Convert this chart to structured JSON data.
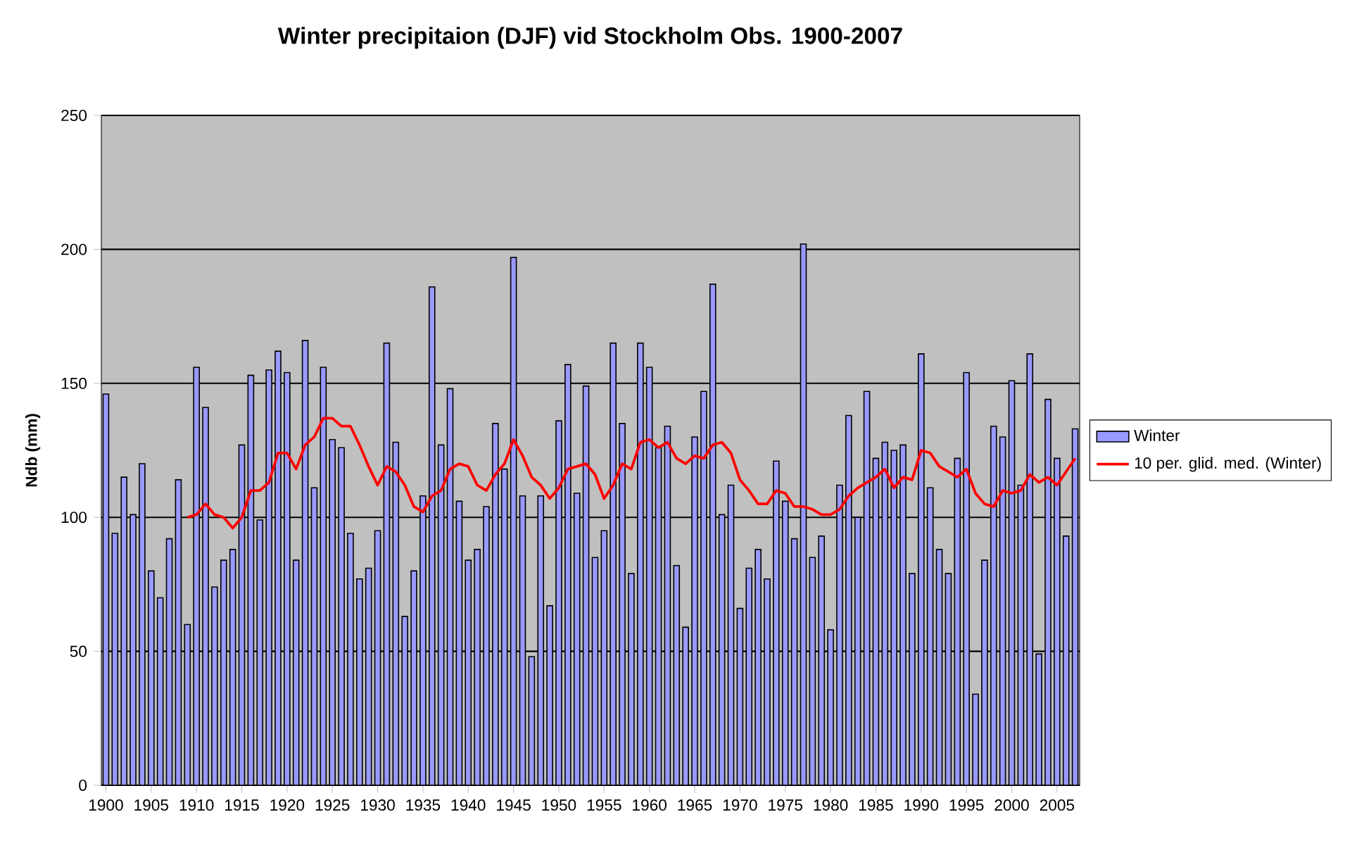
{
  "chart_data": {
    "type": "bar",
    "title": "Winter precipitaion (DJF) vid Stockholm Obs. 1900-2007",
    "ylabel": "Ndb (mm)",
    "x": [
      1900,
      1901,
      1902,
      1903,
      1904,
      1905,
      1906,
      1907,
      1908,
      1909,
      1910,
      1911,
      1912,
      1913,
      1914,
      1915,
      1916,
      1917,
      1918,
      1919,
      1920,
      1921,
      1922,
      1923,
      1924,
      1925,
      1926,
      1927,
      1928,
      1929,
      1930,
      1931,
      1932,
      1933,
      1934,
      1935,
      1936,
      1937,
      1938,
      1939,
      1940,
      1941,
      1942,
      1943,
      1944,
      1945,
      1946,
      1947,
      1948,
      1949,
      1950,
      1951,
      1952,
      1953,
      1954,
      1955,
      1956,
      1957,
      1958,
      1959,
      1960,
      1961,
      1962,
      1963,
      1964,
      1965,
      1966,
      1967,
      1968,
      1969,
      1970,
      1971,
      1972,
      1973,
      1974,
      1975,
      1976,
      1977,
      1978,
      1979,
      1980,
      1981,
      1982,
      1983,
      1984,
      1985,
      1986,
      1987,
      1988,
      1989,
      1990,
      1991,
      1992,
      1993,
      1994,
      1995,
      1996,
      1997,
      1998,
      1999,
      2000,
      2001,
      2002,
      2003,
      2004,
      2005,
      2006,
      2007
    ],
    "xlim": [
      1899.5,
      2007.5
    ],
    "xticks": [
      1900,
      1905,
      1910,
      1915,
      1920,
      1925,
      1930,
      1935,
      1940,
      1945,
      1950,
      1955,
      1960,
      1965,
      1970,
      1975,
      1980,
      1985,
      1990,
      1995,
      2000,
      2005
    ],
    "ylim": [
      0,
      250
    ],
    "yticks": [
      0,
      50,
      100,
      150,
      200,
      250
    ],
    "grid": "y",
    "legend": "right",
    "series": [
      {
        "name": "Winter",
        "color": "#9999ff",
        "values": [
          146,
          94,
          115,
          101,
          120,
          80,
          70,
          92,
          114,
          60,
          156,
          141,
          74,
          84,
          88,
          127,
          153,
          99,
          155,
          162,
          154,
          84,
          166,
          111,
          156,
          129,
          126,
          94,
          77,
          81,
          95,
          165,
          128,
          63,
          80,
          108,
          186,
          127,
          148,
          106,
          84,
          88,
          104,
          135,
          118,
          197,
          108,
          48,
          108,
          67,
          136,
          157,
          109,
          149,
          85,
          95,
          165,
          135,
          79,
          165,
          156,
          126,
          134,
          82,
          59,
          130,
          147,
          187,
          101,
          112,
          66,
          81,
          88,
          77,
          121,
          106,
          92,
          202,
          85,
          93,
          58,
          112,
          138,
          100,
          147,
          122,
          128,
          125,
          127,
          79,
          161,
          111,
          88,
          79,
          122,
          154,
          34,
          84,
          134,
          130,
          151,
          112,
          161,
          49,
          144,
          122,
          93,
          133
        ]
      },
      {
        "name": "10 per. glid. med. (Winter)",
        "type": "line",
        "color": "#ff0000",
        "x": [
          1909,
          1910,
          1911,
          1912,
          1913,
          1914,
          1915,
          1916,
          1917,
          1918,
          1919,
          1920,
          1921,
          1922,
          1923,
          1924,
          1925,
          1926,
          1927,
          1928,
          1929,
          1930,
          1931,
          1932,
          1933,
          1934,
          1935,
          1936,
          1937,
          1938,
          1939,
          1940,
          1941,
          1942,
          1943,
          1944,
          1945,
          1946,
          1947,
          1948,
          1949,
          1950,
          1951,
          1952,
          1953,
          1954,
          1955,
          1956,
          1957,
          1958,
          1959,
          1960,
          1961,
          1962,
          1963,
          1964,
          1965,
          1966,
          1967,
          1968,
          1969,
          1970,
          1971,
          1972,
          1973,
          1974,
          1975,
          1976,
          1977,
          1978,
          1979,
          1980,
          1981,
          1982,
          1983,
          1984,
          1985,
          1986,
          1987,
          1988,
          1989,
          1990,
          1991,
          1992,
          1993,
          1994,
          1995,
          1996,
          1997,
          1998,
          1999,
          2000,
          2001,
          2002,
          2003,
          2004,
          2005,
          2006,
          2007
        ],
        "values": [
          100,
          101,
          105,
          101,
          100,
          96,
          100,
          110,
          110,
          113,
          124,
          124,
          118,
          127,
          130,
          137,
          137,
          134,
          134,
          127,
          119,
          112,
          119,
          117,
          112,
          104,
          102,
          108,
          110,
          118,
          120,
          119,
          112,
          110,
          116,
          120,
          129,
          123,
          115,
          112,
          107,
          111,
          118,
          119,
          120,
          116,
          107,
          112,
          120,
          118,
          128,
          129,
          126,
          128,
          122,
          120,
          123,
          122,
          127,
          128,
          124,
          114,
          110,
          105,
          105,
          110,
          109,
          104,
          104,
          103,
          101,
          101,
          103,
          108,
          111,
          113,
          115,
          118,
          111,
          115,
          114,
          125,
          124,
          119,
          117,
          115,
          118,
          109,
          105,
          104,
          110,
          109,
          110,
          116,
          113,
          115,
          112,
          117,
          122
        ]
      }
    ]
  }
}
